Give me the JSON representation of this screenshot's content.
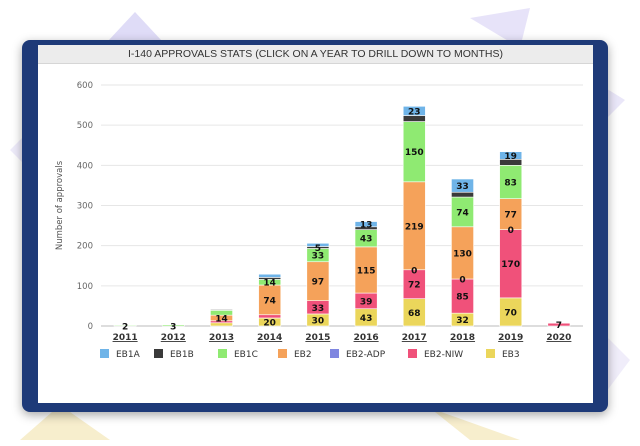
{
  "colors": {
    "frame": "#1e3a78",
    "EB1A": "#6fb4e8",
    "EB1B": "#3a3a3a",
    "EB1C": "#8fea72",
    "EB2": "#f5a25a",
    "EB2-ADP": "#7f86e0",
    "EB2-NIW": "#f0517a",
    "EB3": "#ebd65b"
  },
  "chart_data": {
    "type": "bar",
    "stacked": true,
    "title": "I-140 APPROVALS STATS (CLICK ON A YEAR TO DRILL DOWN TO MONTHS)",
    "ylabel": "Number of approvals",
    "xlabel": "",
    "ylim": [
      0,
      600
    ],
    "yticks": [
      0,
      100,
      200,
      300,
      400,
      500,
      600
    ],
    "grid": true,
    "legend_position": "bottom",
    "categories": [
      "2011",
      "2012",
      "2013",
      "2014",
      "2015",
      "2016",
      "2017",
      "2018",
      "2019",
      "2020"
    ],
    "series": [
      {
        "name": "EB3",
        "values": [
          0,
          0,
          8,
          20,
          30,
          43,
          68,
          32,
          70,
          0
        ]
      },
      {
        "name": "EB2-NIW",
        "values": [
          0,
          0,
          5,
          8,
          33,
          39,
          72,
          85,
          170,
          7
        ]
      },
      {
        "name": "EB2-ADP",
        "values": [
          0,
          0,
          0,
          0,
          0,
          0,
          0,
          0,
          0,
          0
        ]
      },
      {
        "name": "EB2",
        "values": [
          0,
          0,
          14,
          74,
          97,
          115,
          219,
          130,
          77,
          0
        ]
      },
      {
        "name": "EB1C",
        "values": [
          2,
          3,
          12,
          14,
          33,
          43,
          150,
          74,
          83,
          0
        ]
      },
      {
        "name": "EB1B",
        "values": [
          0,
          0,
          2,
          5,
          5,
          7,
          15,
          12,
          15,
          0
        ]
      },
      {
        "name": "EB1A",
        "values": [
          0,
          0,
          0,
          8,
          8,
          13,
          23,
          33,
          19,
          0
        ]
      }
    ],
    "data_labels": [
      {
        "category": "2011",
        "series": "EB1C",
        "text": "2"
      },
      {
        "category": "2012",
        "series": "EB1C",
        "text": "3"
      },
      {
        "category": "2013",
        "series": "EB2",
        "text": "14"
      },
      {
        "category": "2014",
        "series": "EB3",
        "text": "20"
      },
      {
        "category": "2014",
        "series": "EB2",
        "text": "74"
      },
      {
        "category": "2014",
        "series": "EB1C",
        "text": "14"
      },
      {
        "category": "2015",
        "series": "EB3",
        "text": "30"
      },
      {
        "category": "2015",
        "series": "EB2-NIW",
        "text": "33"
      },
      {
        "category": "2015",
        "series": "EB2",
        "text": "97"
      },
      {
        "category": "2015",
        "series": "EB1C",
        "text": "33"
      },
      {
        "category": "2015",
        "series": "EB1B",
        "text": "5"
      },
      {
        "category": "2016",
        "series": "EB3",
        "text": "43"
      },
      {
        "category": "2016",
        "series": "EB2-NIW",
        "text": "39"
      },
      {
        "category": "2016",
        "series": "EB2",
        "text": "115"
      },
      {
        "category": "2016",
        "series": "EB1C",
        "text": "43"
      },
      {
        "category": "2016",
        "series": "EB1A",
        "text": "13"
      },
      {
        "category": "2017",
        "series": "EB3",
        "text": "68"
      },
      {
        "category": "2017",
        "series": "EB2-NIW",
        "text": "72"
      },
      {
        "category": "2017",
        "series": "EB2-ADP",
        "text": "0"
      },
      {
        "category": "2017",
        "series": "EB2",
        "text": "219"
      },
      {
        "category": "2017",
        "series": "EB1C",
        "text": "150"
      },
      {
        "category": "2017",
        "series": "EB1A",
        "text": "23"
      },
      {
        "category": "2018",
        "series": "EB3",
        "text": "32"
      },
      {
        "category": "2018",
        "series": "EB2-NIW",
        "text": "85"
      },
      {
        "category": "2018",
        "series": "EB2-ADP",
        "text": "0"
      },
      {
        "category": "2018",
        "series": "EB2",
        "text": "130"
      },
      {
        "category": "2018",
        "series": "EB1C",
        "text": "74"
      },
      {
        "category": "2018",
        "series": "EB1A",
        "text": "33"
      },
      {
        "category": "2019",
        "series": "EB3",
        "text": "70"
      },
      {
        "category": "2019",
        "series": "EB2-NIW",
        "text": "170"
      },
      {
        "category": "2019",
        "series": "EB2-ADP",
        "text": "0"
      },
      {
        "category": "2019",
        "series": "EB2",
        "text": "77"
      },
      {
        "category": "2019",
        "series": "EB1C",
        "text": "83"
      },
      {
        "category": "2019",
        "series": "EB1A",
        "text": "19"
      },
      {
        "category": "2020",
        "series": "EB2-NIW",
        "text": "7"
      }
    ],
    "legend": [
      "EB1A",
      "EB1B",
      "EB1C",
      "EB2",
      "EB2-ADP",
      "EB2-NIW",
      "EB3"
    ]
  }
}
